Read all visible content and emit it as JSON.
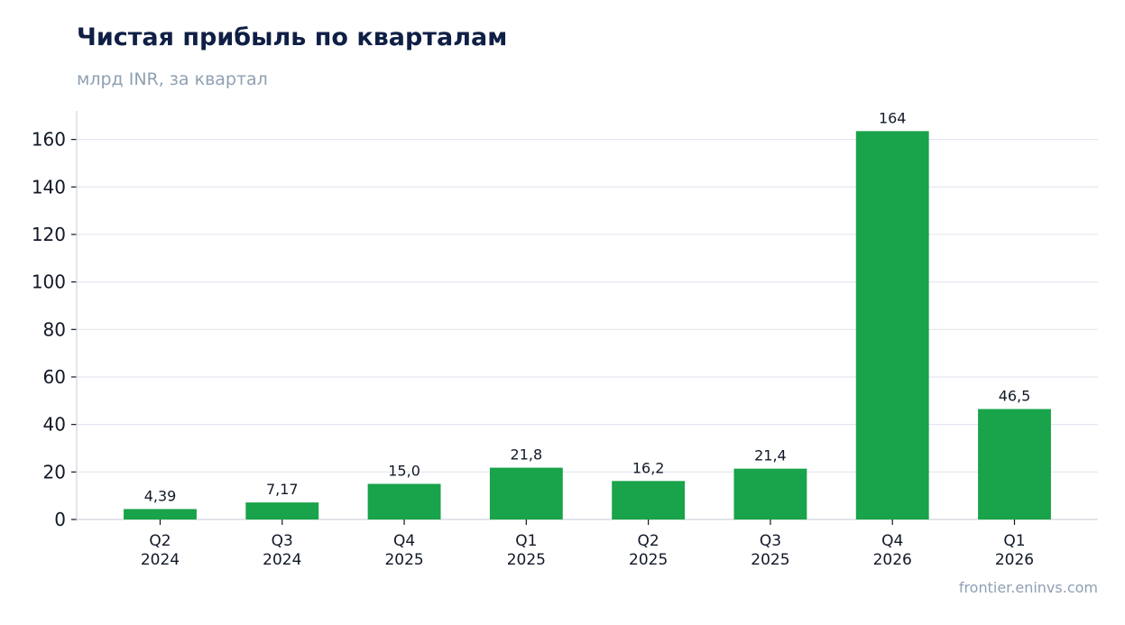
{
  "header": {
    "title": "Чистая прибыль по кварталам",
    "subtitle": "млрд INR, за квартал"
  },
  "footer": {
    "source": "frontier.eninvs.com"
  },
  "colors": {
    "bar": "#19a34a",
    "grid": "#e3e7ef",
    "axis": "#d0d5de",
    "text": "#111827"
  },
  "chart_data": {
    "type": "bar",
    "categories": [
      [
        "Q2",
        "2024"
      ],
      [
        "Q3",
        "2024"
      ],
      [
        "Q4",
        "2025"
      ],
      [
        "Q1",
        "2025"
      ],
      [
        "Q2",
        "2025"
      ],
      [
        "Q3",
        "2025"
      ],
      [
        "Q4",
        "2026"
      ],
      [
        "Q1",
        "2026"
      ]
    ],
    "values": [
      4.39,
      7.17,
      15.0,
      21.8,
      16.2,
      21.4,
      163.5,
      46.5
    ],
    "data_labels": [
      "4,39",
      "7,17",
      "15,0",
      "21,8",
      "16,2",
      "21,4",
      "164",
      "46,5"
    ],
    "ylim": [
      0,
      172
    ],
    "yticks": [
      0,
      20,
      40,
      60,
      80,
      100,
      120,
      140,
      160
    ],
    "grid": true
  }
}
